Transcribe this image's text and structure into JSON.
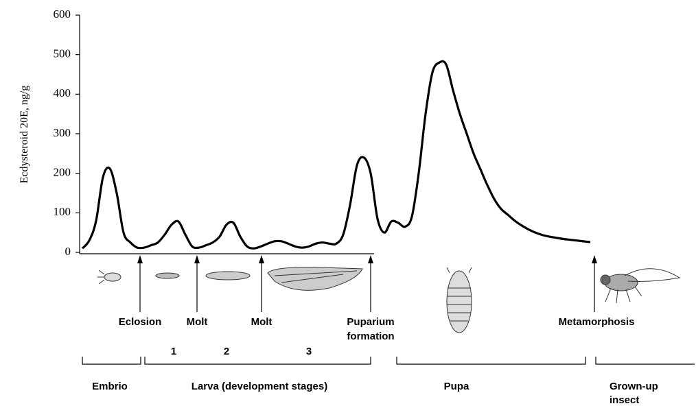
{
  "chart_data": {
    "type": "line",
    "y_label": "Ecdysteroid 20E, ng/g",
    "ylim": [
      0,
      600
    ],
    "yticks": [
      0,
      100,
      200,
      300,
      400,
      500,
      600
    ],
    "color": "#000000",
    "grid": false,
    "values": [
      10,
      30,
      80,
      190,
      212,
      150,
      50,
      25,
      12,
      12,
      18,
      25,
      45,
      70,
      78,
      45,
      15,
      12,
      18,
      25,
      40,
      70,
      75,
      40,
      15,
      10,
      15,
      22,
      28,
      28,
      22,
      15,
      12,
      15,
      22,
      25,
      22,
      22,
      45,
      120,
      220,
      240,
      200,
      85,
      50,
      78,
      75,
      65,
      90,
      200,
      350,
      455,
      480,
      475,
      410,
      350,
      300,
      250,
      210,
      170,
      135,
      110,
      95,
      80,
      68,
      58,
      50,
      44,
      40,
      37,
      34,
      32,
      30,
      28,
      26
    ],
    "events": [
      [
        "Eclosion"
      ],
      [
        "Molt"
      ],
      [
        "Molt"
      ],
      [
        "Puparium",
        "formation"
      ],
      [
        "Metamorphosis"
      ]
    ],
    "instars": [
      "1",
      "2",
      "3"
    ],
    "stages": [
      [
        "Embrio"
      ],
      [
        "Larva (development stages)"
      ],
      [
        "Pupa"
      ],
      [
        "Grown-up",
        "insect"
      ]
    ]
  }
}
